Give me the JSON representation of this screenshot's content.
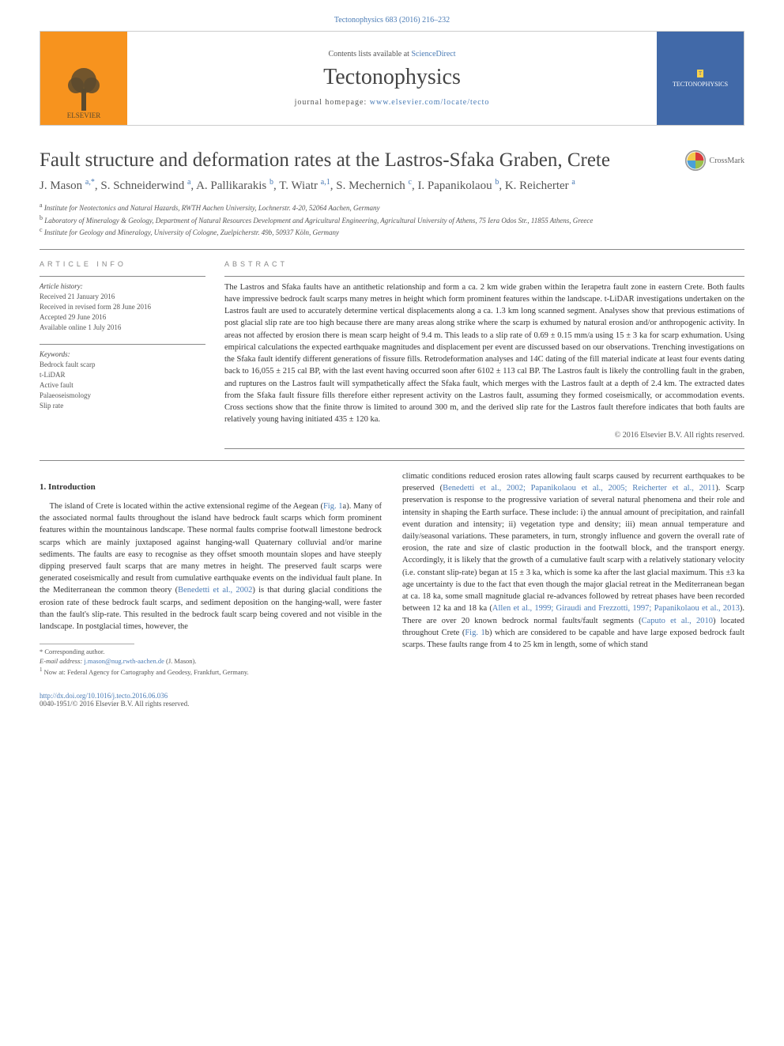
{
  "runningHead": "Tectonophysics 683 (2016) 216–232",
  "header": {
    "contentsLine_pre": "Contents lists available at ",
    "contentsLine_link": "ScienceDirect",
    "journalName": "Tectonophysics",
    "homepage_pre": "journal homepage: ",
    "homepage_link": "www.elsevier.com/locate/tecto",
    "publisherWordmark": "ELSEVIER",
    "coverWordmark": "TECTONOPHYSICS",
    "coverMark": "T"
  },
  "title": "Fault structure and deformation rates at the Lastros-Sfaka Graben, Crete",
  "crossmark": "CrossMark",
  "authors_html": "J. Mason <sup>a,*</sup>, S. Schneiderwind <sup>a</sup>, A. Pallikarakis <sup>b</sup>, T. Wiatr <sup>a,1</sup>, S. Mechernich <sup>c</sup>, I. Papanikolaou <sup>b</sup>, K. Reicherter <sup>a</sup>",
  "affiliations": [
    {
      "sup": "a",
      "text": "Institute for Neotectonics and Natural Hazards, RWTH Aachen University, Lochnerstr. 4-20, 52064 Aachen, Germany"
    },
    {
      "sup": "b",
      "text": "Laboratory of Mineralogy & Geology, Department of Natural Resources Development and Agricultural Engineering, Agricultural University of Athens, 75 Iera Odos Str., 11855 Athens, Greece"
    },
    {
      "sup": "c",
      "text": "Institute for Geology and Mineralogy, University of Cologne, Zuelpicherstr. 49b, 50937 Köln, Germany"
    }
  ],
  "articleInfo": {
    "heading": "article info",
    "historyLabel": "Article history:",
    "history": [
      "Received 21 January 2016",
      "Received in revised form 28 June 2016",
      "Accepted 29 June 2016",
      "Available online 1 July 2016"
    ],
    "keywordsLabel": "Keywords:",
    "keywords": [
      "Bedrock fault scarp",
      "t-LiDAR",
      "Active fault",
      "Palaeoseismology",
      "Slip rate"
    ]
  },
  "abstract": {
    "heading": "abstract",
    "text": "The Lastros and Sfaka faults have an antithetic relationship and form a ca. 2 km wide graben within the Ierapetra fault zone in eastern Crete. Both faults have impressive bedrock fault scarps many metres in height which form prominent features within the landscape. t-LiDAR investigations undertaken on the Lastros fault are used to accurately determine vertical displacements along a ca. 1.3 km long scanned segment. Analyses show that previous estimations of post glacial slip rate are too high because there are many areas along strike where the scarp is exhumed by natural erosion and/or anthropogenic activity. In areas not affected by erosion there is mean scarp height of 9.4 m. This leads to a slip rate of 0.69 ± 0.15 mm/a using 15 ± 3 ka for scarp exhumation. Using empirical calculations the expected earthquake magnitudes and displacement per event are discussed based on our observations. Trenching investigations on the Sfaka fault identify different generations of fissure fills. Retrodeformation analyses and 14C dating of the fill material indicate at least four events dating back to 16,055 ± 215 cal BP, with the last event having occurred soon after 6102 ± 113 cal BP. The Lastros fault is likely the controlling fault in the graben, and ruptures on the Lastros fault will sympathetically affect the Sfaka fault, which merges with the Lastros fault at a depth of 2.4 km. The extracted dates from the Sfaka fault fissure fills therefore either represent activity on the Lastros fault, assuming they formed coseismically, or accommodation events. Cross sections show that the finite throw is limited to around 300 m, and the derived slip rate for the Lastros fault therefore indicates that both faults are relatively young having initiated 435 ± 120 ka.",
    "copyright": "© 2016 Elsevier B.V. All rights reserved."
  },
  "section1": {
    "heading": "1. Introduction",
    "p1_a": "The island of Crete is located within the active extensional regime of the Aegean (",
    "p1_cite1": "Fig. 1",
    "p1_b": "a). Many of the associated normal faults throughout the island have bedrock fault scarps which form prominent features within the mountainous landscape. These normal faults comprise footwall limestone bedrock scarps which are mainly juxtaposed against hanging-wall Quaternary colluvial and/or marine sediments. The faults are easy to recognise as they offset smooth mountain slopes and have steeply dipping preserved fault scarps that are many metres in height. The preserved fault scarps were generated coseismically and result from cumulative earthquake events on the individual fault plane. In the Mediterranean the common theory (",
    "p1_cite2": "Benedetti et al., 2002",
    "p1_c": ") is that during glacial conditions the erosion rate of these bedrock fault scarps, and sediment deposition on the hanging-wall, were faster than the fault's slip-rate. This resulted in the bedrock fault scarp being covered and not visible in the landscape. In postglacial times, however, the ",
    "p2_a": "climatic conditions reduced erosion rates allowing fault scarps caused by recurrent earthquakes to be preserved (",
    "p2_cite1": "Benedetti et al., 2002; Papanikolaou et al., 2005; Reicherter et al., 2011",
    "p2_b": "). Scarp preservation is response to the progressive variation of several natural phenomena and their role and intensity in shaping the Earth surface. These include: i) the annual amount of precipitation, and rainfall event duration and intensity; ii) vegetation type and density; iii) mean annual temperature and daily/seasonal variations. These parameters, in turn, strongly influence and govern the overall rate of erosion, the rate and size of clastic production in the footwall block, and the transport energy. Accordingly, it is likely that the growth of a cumulative fault scarp with a relatively stationary velocity (i.e. constant slip-rate) began at 15 ± 3 ka, which is some ka after the last glacial maximum. This ±3 ka age uncertainty is due to the fact that even though the major glacial retreat in the Mediterranean began at ca. 18 ka, some small magnitude glacial re-advances followed by retreat phases have been recorded between 12 ka and 18 ka (",
    "p2_cite2": "Allen et al., 1999; Giraudi and Frezzotti, 1997; Papanikolaou et al., 2013",
    "p2_c": "). There are over 20 known bedrock normal faults/fault segments (",
    "p2_cite3": "Caputo et al., 2010",
    "p2_d": ") located throughout Crete (",
    "p2_cite4": "Fig. 1",
    "p2_e": "b) which are considered to be capable and have large exposed bedrock fault scarps. These faults range from 4 to 25 km in length, some of which stand"
  },
  "footnotes": {
    "corr_label": "* Corresponding author.",
    "email_label": "E-mail address: ",
    "email": "j.mason@nug.rwth-aachen.de",
    "email_tail": " (J. Mason).",
    "note1": "1 Now at: Federal Agency for Cartography and Geodesy, Frankfurt, Germany."
  },
  "footer": {
    "doi": "http://dx.doi.org/10.1016/j.tecto.2016.06.036",
    "issn_line": "0040-1951/© 2016 Elsevier B.V. All rights reserved."
  },
  "colors": {
    "link": "#4a7bb5",
    "elsevierOrange": "#f7931e",
    "coverBlue": "#4169a8"
  }
}
